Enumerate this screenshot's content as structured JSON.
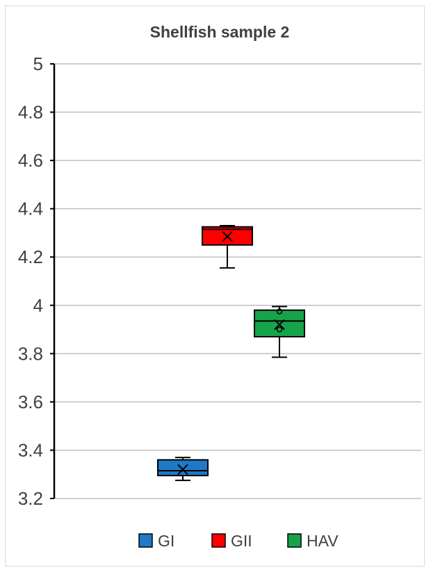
{
  "chart_data": {
    "type": "box",
    "title": "Shellfish sample 2",
    "xlabel": "",
    "ylabel": "",
    "ylim": [
      3.2,
      5
    ],
    "yticks": [
      "3.2",
      "3.4",
      "3.6",
      "3.8",
      "4",
      "4.2",
      "4.4",
      "4.6",
      "4.8",
      "5"
    ],
    "grid": true,
    "legend_position": "bottom",
    "series": [
      {
        "name": "GI",
        "color": "#1f78c8",
        "min": 3.275,
        "q1": 3.295,
        "median": 3.315,
        "q3": 3.36,
        "max": 3.37,
        "mean": 3.32,
        "outliers": []
      },
      {
        "name": "GII",
        "color": "#ff0000",
        "min": 4.155,
        "q1": 4.25,
        "median": 4.315,
        "q3": 4.325,
        "max": 4.33,
        "mean": 4.285,
        "outliers": []
      },
      {
        "name": "HAV",
        "color": "#17a34a",
        "min": 3.785,
        "q1": 3.87,
        "median": 3.935,
        "q3": 3.98,
        "max": 3.995,
        "mean": 3.92,
        "outliers": [
          3.975,
          3.9
        ]
      }
    ]
  }
}
